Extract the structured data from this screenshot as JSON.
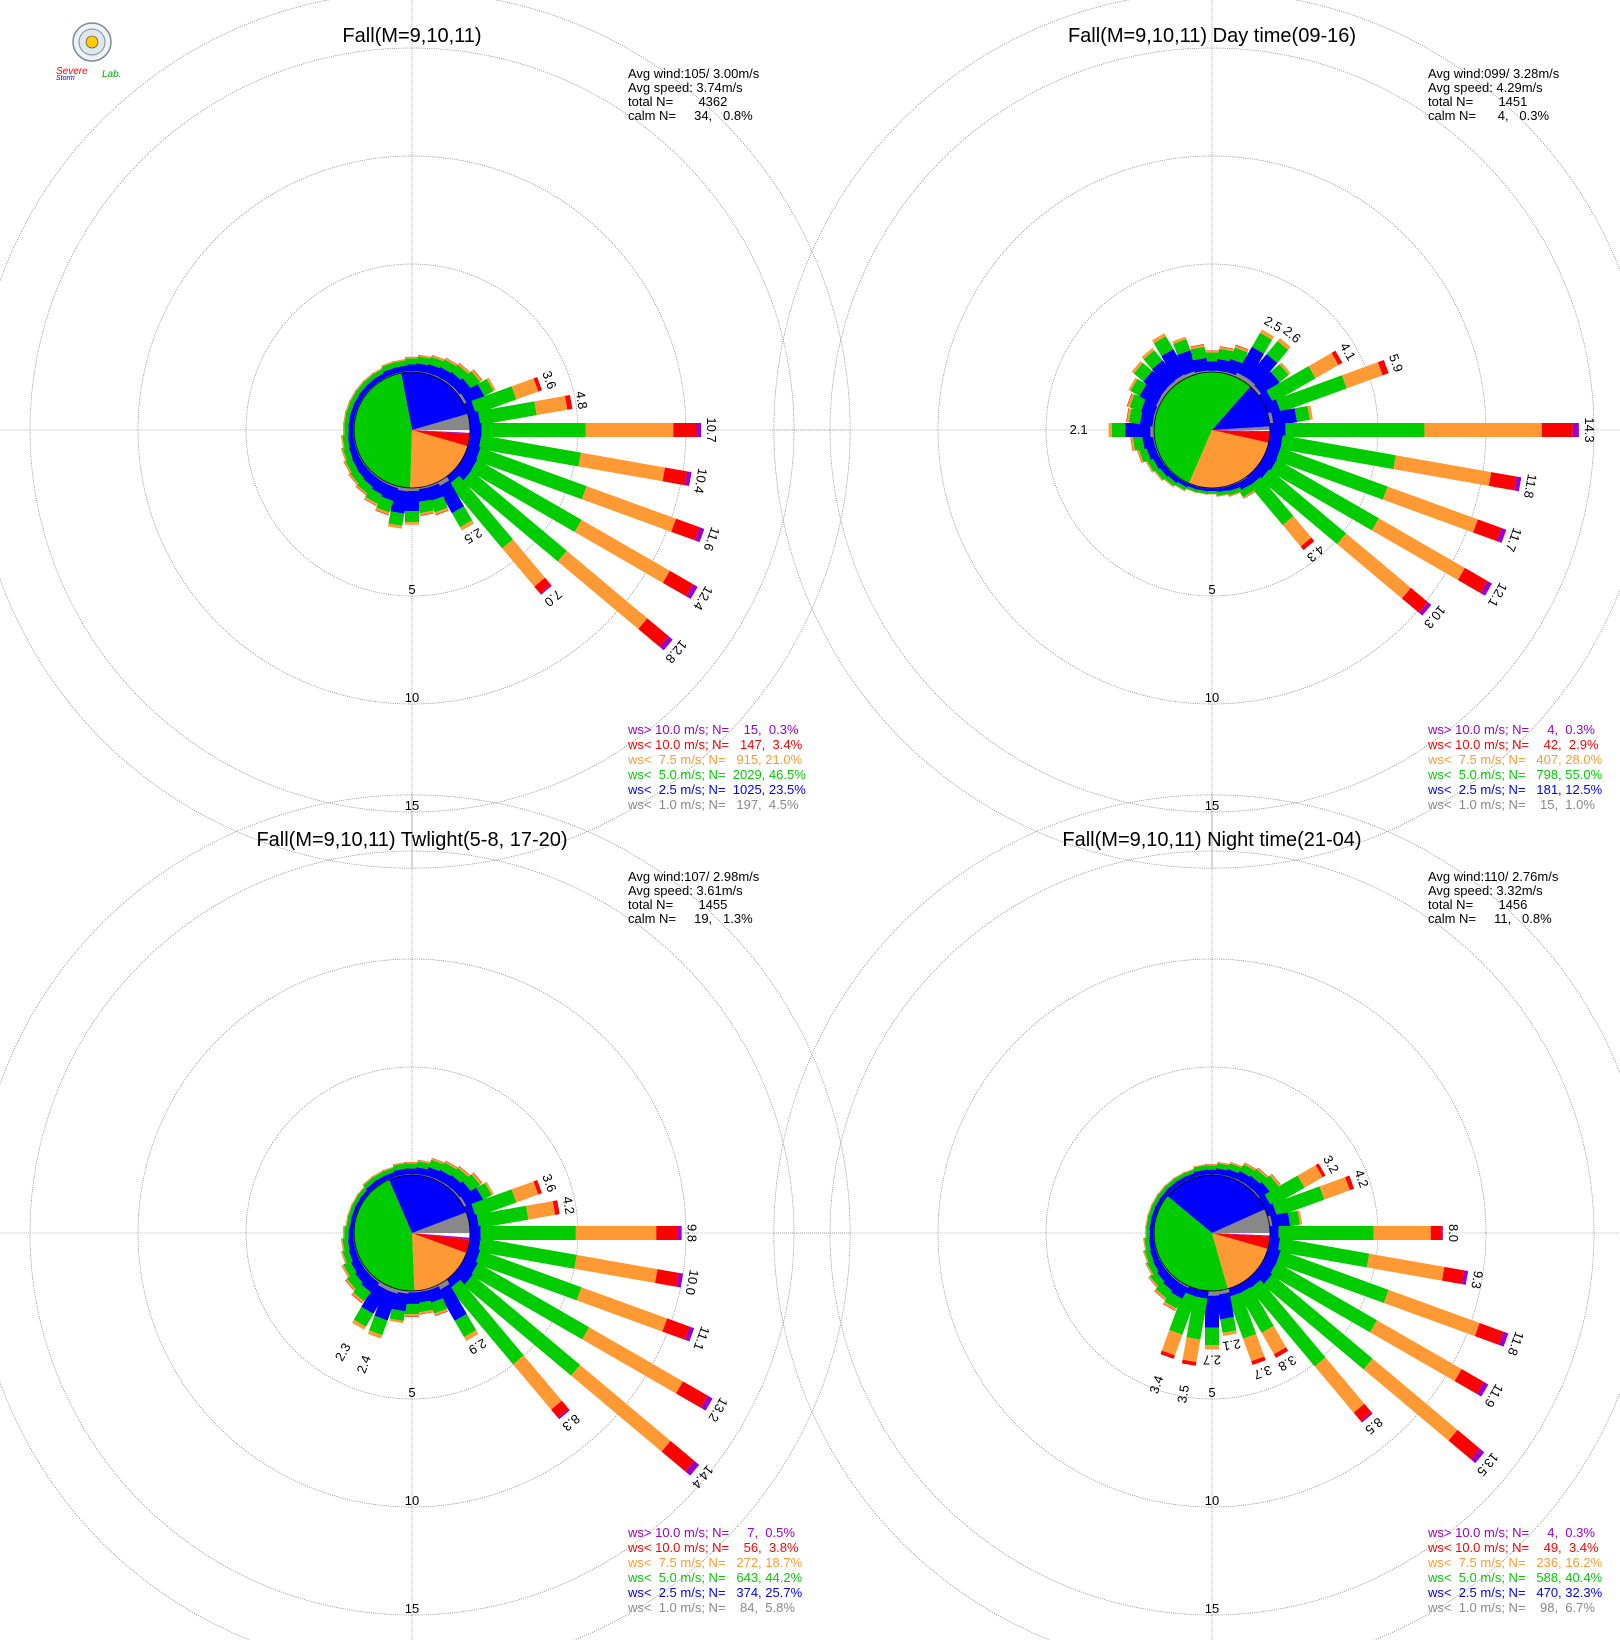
{
  "logo": {
    "text_severe": "Severe",
    "text_storm": "Storm",
    "text_lab": "Lab.",
    "icon": "lab-seal-icon"
  },
  "colors": {
    "gt10": "#9900cc",
    "lt10": "#ff0000",
    "lt75": "#ff9933",
    "lt50": "#00cc00",
    "lt25": "#0000ff",
    "lt10calm": "#888888",
    "grid": "#777777"
  },
  "ring_labels": [
    "5",
    "10",
    "15"
  ],
  "chart_data": [
    {
      "type": "windrose",
      "title": "Fall(M=9,10,11)",
      "stats": [
        "Avg wind:105/ 3.00m/s",
        "Avg speed: 3.74m/s",
        "total N=       4362",
        "calm N=     34,   0.8%"
      ],
      "legend": [
        "ws> 10.0 m/s; N=    15,  0.3%",
        "ws< 10.0 m/s; N=   147,  3.4%",
        "ws<  7.5 m/s; N=   915, 21.0%",
        "ws<  5.0 m/s; N=  2029, 46.5%",
        "ws<  2.5 m/s; N=  1025, 23.5%",
        "ws<  1.0 m/s; N=   197,  4.5%"
      ],
      "pie": [
        0.045,
        0.235,
        0.465,
        0.21,
        0.034,
        0.003
      ],
      "petals": [
        {
          "dir": 0,
          "total": 0.7,
          "label": ""
        },
        {
          "dir": 10,
          "total": 0.8,
          "label": ""
        },
        {
          "dir": 20,
          "total": 0.9,
          "label": ""
        },
        {
          "dir": 30,
          "total": 1.0,
          "label": ""
        },
        {
          "dir": 40,
          "total": 1.1,
          "label": ""
        },
        {
          "dir": 50,
          "total": 1.3,
          "label": ""
        },
        {
          "dir": 60,
          "total": 1.6,
          "label": ""
        },
        {
          "dir": 70,
          "total": 3.6,
          "label": "3.6"
        },
        {
          "dir": 80,
          "total": 4.8,
          "label": "4.8"
        },
        {
          "dir": 90,
          "total": 10.7,
          "label": "10.7"
        },
        {
          "dir": 100,
          "total": 10.4,
          "label": "10.4"
        },
        {
          "dir": 110,
          "total": 11.6,
          "label": "11.6"
        },
        {
          "dir": 120,
          "total": 12.4,
          "label": "12.4"
        },
        {
          "dir": 130,
          "total": 12.8,
          "label": "12.8"
        },
        {
          "dir": 140,
          "total": 7.0,
          "label": "7.0"
        },
        {
          "dir": 150,
          "total": 2.5,
          "label": "2.5"
        },
        {
          "dir": 160,
          "total": 1.4,
          "label": ""
        },
        {
          "dir": 170,
          "total": 1.3,
          "label": ""
        },
        {
          "dir": 180,
          "total": 1.7,
          "label": ""
        },
        {
          "dir": 190,
          "total": 1.9,
          "label": ""
        },
        {
          "dir": 200,
          "total": 1.4,
          "label": ""
        },
        {
          "dir": 210,
          "total": 1.2,
          "label": ""
        },
        {
          "dir": 220,
          "total": 1.0,
          "label": ""
        },
        {
          "dir": 230,
          "total": 0.9,
          "label": ""
        },
        {
          "dir": 240,
          "total": 0.8,
          "label": ""
        },
        {
          "dir": 250,
          "total": 0.7,
          "label": ""
        },
        {
          "dir": 260,
          "total": 0.6,
          "label": ""
        },
        {
          "dir": 270,
          "total": 0.5,
          "label": ""
        },
        {
          "dir": 280,
          "total": 0.5,
          "label": ""
        },
        {
          "dir": 290,
          "total": 0.5,
          "label": ""
        },
        {
          "dir": 300,
          "total": 0.5,
          "label": ""
        },
        {
          "dir": 310,
          "total": 0.5,
          "label": ""
        },
        {
          "dir": 320,
          "total": 0.5,
          "label": ""
        },
        {
          "dir": 330,
          "total": 0.5,
          "label": ""
        },
        {
          "dir": 340,
          "total": 0.6,
          "label": ""
        },
        {
          "dir": 350,
          "total": 0.6,
          "label": ""
        }
      ]
    },
    {
      "type": "windrose",
      "title": "Fall(M=9,10,11) Day time(09-16)",
      "stats": [
        "Avg wind:099/ 3.28m/s",
        "Avg speed: 4.29m/s",
        "total N=       1451",
        "calm N=      4,   0.3%"
      ],
      "legend": [
        "ws> 10.0 m/s; N=     4,  0.3%",
        "ws< 10.0 m/s; N=    42,  2.9%",
        "ws<  7.5 m/s; N=   407, 28.0%",
        "ws<  5.0 m/s; N=   798, 55.0%",
        "ws<  2.5 m/s; N=   181, 12.5%",
        "ws<  1.0 m/s; N=    15,  1.0%"
      ],
      "pie": [
        0.01,
        0.125,
        0.55,
        0.28,
        0.029,
        0.003
      ],
      "petals": [
        {
          "dir": 0,
          "total": 1.0,
          "label": ""
        },
        {
          "dir": 10,
          "total": 1.2,
          "label": ""
        },
        {
          "dir": 20,
          "total": 1.4,
          "label": ""
        },
        {
          "dir": 30,
          "total": 2.5,
          "label": "2.5"
        },
        {
          "dir": 40,
          "total": 2.6,
          "label": "2.6"
        },
        {
          "dir": 50,
          "total": 1.8,
          "label": ""
        },
        {
          "dir": 60,
          "total": 4.1,
          "label": "4.1"
        },
        {
          "dir": 70,
          "total": 5.9,
          "label": "5.9"
        },
        {
          "dir": 80,
          "total": 2.0,
          "label": ""
        },
        {
          "dir": 90,
          "total": 14.3,
          "label": "14.3"
        },
        {
          "dir": 100,
          "total": 11.8,
          "label": "11.8"
        },
        {
          "dir": 110,
          "total": 11.7,
          "label": "11.7"
        },
        {
          "dir": 120,
          "total": 12.1,
          "label": "12.1"
        },
        {
          "dir": 130,
          "total": 10.3,
          "label": "10.3"
        },
        {
          "dir": 140,
          "total": 4.3,
          "label": "4.3"
        },
        {
          "dir": 150,
          "total": 0.8,
          "label": ""
        },
        {
          "dir": 160,
          "total": 0.5,
          "label": ""
        },
        {
          "dir": 170,
          "total": 0.4,
          "label": ""
        },
        {
          "dir": 180,
          "total": 0.3,
          "label": ""
        },
        {
          "dir": 190,
          "total": 0.3,
          "label": ""
        },
        {
          "dir": 200,
          "total": 0.3,
          "label": ""
        },
        {
          "dir": 210,
          "total": 0.4,
          "label": ""
        },
        {
          "dir": 220,
          "total": 0.5,
          "label": ""
        },
        {
          "dir": 230,
          "total": 0.6,
          "label": ""
        },
        {
          "dir": 240,
          "total": 0.7,
          "label": ""
        },
        {
          "dir": 250,
          "total": 0.9,
          "label": ""
        },
        {
          "dir": 260,
          "total": 1.1,
          "label": ""
        },
        {
          "dir": 270,
          "total": 2.1,
          "label": "2.1"
        },
        {
          "dir": 280,
          "total": 1.3,
          "label": ""
        },
        {
          "dir": 290,
          "total": 1.4,
          "label": ""
        },
        {
          "dir": 300,
          "total": 1.6,
          "label": ""
        },
        {
          "dir": 310,
          "total": 1.9,
          "label": ""
        },
        {
          "dir": 320,
          "total": 2.0,
          "label": ""
        },
        {
          "dir": 330,
          "total": 2.3,
          "label": ""
        },
        {
          "dir": 340,
          "total": 1.8,
          "label": ""
        },
        {
          "dir": 350,
          "total": 1.3,
          "label": ""
        }
      ]
    },
    {
      "type": "windrose",
      "title": "Fall(M=9,10,11) Twlight(5-8, 17-20)",
      "stats": [
        "Avg wind:107/ 2.98m/s",
        "Avg speed: 3.61m/s",
        "total N=       1455",
        "calm N=     19,   1.3%"
      ],
      "legend": [
        "ws> 10.0 m/s; N=     7,  0.5%",
        "ws< 10.0 m/s; N=    56,  3.8%",
        "ws<  7.5 m/s; N=   272, 18.7%",
        "ws<  5.0 m/s; N=   643, 44.2%",
        "ws<  2.5 m/s; N=   374, 25.7%",
        "ws<  1.0 m/s; N=    84,  5.8%"
      ],
      "pie": [
        0.058,
        0.257,
        0.442,
        0.187,
        0.038,
        0.005
      ],
      "petals": [
        {
          "dir": 0,
          "total": 0.6,
          "label": ""
        },
        {
          "dir": 10,
          "total": 0.7,
          "label": ""
        },
        {
          "dir": 20,
          "total": 0.9,
          "label": ""
        },
        {
          "dir": 30,
          "total": 1.0,
          "label": ""
        },
        {
          "dir": 40,
          "total": 1.1,
          "label": ""
        },
        {
          "dir": 50,
          "total": 1.3,
          "label": ""
        },
        {
          "dir": 60,
          "total": 1.5,
          "label": ""
        },
        {
          "dir": 70,
          "total": 3.6,
          "label": "3.6"
        },
        {
          "dir": 80,
          "total": 4.2,
          "label": "4.2"
        },
        {
          "dir": 90,
          "total": 9.8,
          "label": "9.8"
        },
        {
          "dir": 100,
          "total": 10.0,
          "label": "10.0"
        },
        {
          "dir": 110,
          "total": 11.1,
          "label": "11.1"
        },
        {
          "dir": 120,
          "total": 13.2,
          "label": "13.2"
        },
        {
          "dir": 130,
          "total": 14.4,
          "label": "14.4"
        },
        {
          "dir": 140,
          "total": 8.3,
          "label": "8.3"
        },
        {
          "dir": 150,
          "total": 2.9,
          "label": "2.9"
        },
        {
          "dir": 160,
          "total": 1.3,
          "label": ""
        },
        {
          "dir": 170,
          "total": 1.1,
          "label": ""
        },
        {
          "dir": 180,
          "total": 1.2,
          "label": ""
        },
        {
          "dir": 190,
          "total": 1.5,
          "label": ""
        },
        {
          "dir": 200,
          "total": 2.4,
          "label": "2.4"
        },
        {
          "dir": 210,
          "total": 2.3,
          "label": "2.3"
        },
        {
          "dir": 220,
          "total": 1.3,
          "label": ""
        },
        {
          "dir": 230,
          "total": 1.1,
          "label": ""
        },
        {
          "dir": 240,
          "total": 0.9,
          "label": ""
        },
        {
          "dir": 250,
          "total": 0.7,
          "label": ""
        },
        {
          "dir": 260,
          "total": 0.6,
          "label": ""
        },
        {
          "dir": 270,
          "total": 0.5,
          "label": ""
        },
        {
          "dir": 280,
          "total": 0.4,
          "label": ""
        },
        {
          "dir": 290,
          "total": 0.4,
          "label": ""
        },
        {
          "dir": 300,
          "total": 0.4,
          "label": ""
        },
        {
          "dir": 310,
          "total": 0.4,
          "label": ""
        },
        {
          "dir": 320,
          "total": 0.5,
          "label": ""
        },
        {
          "dir": 330,
          "total": 0.5,
          "label": ""
        },
        {
          "dir": 340,
          "total": 0.5,
          "label": ""
        },
        {
          "dir": 350,
          "total": 0.6,
          "label": ""
        }
      ]
    },
    {
      "type": "windrose",
      "title": "Fall(M=9,10,11) Night time(21-04)",
      "stats": [
        "Avg wind:110/ 2.76m/s",
        "Avg speed: 3.32m/s",
        "total N=       1456",
        "calm N=     11,   0.8%"
      ],
      "legend": [
        "ws> 10.0 m/s; N=     4,  0.3%",
        "ws< 10.0 m/s; N=    49,  3.4%",
        "ws<  7.5 m/s; N=   236, 16.2%",
        "ws<  5.0 m/s; N=   588, 40.4%",
        "ws<  2.5 m/s; N=   470, 32.3%",
        "ws<  1.0 m/s; N=    98,  6.7%"
      ],
      "pie": [
        0.067,
        0.323,
        0.404,
        0.162,
        0.034,
        0.003
      ],
      "petals": [
        {
          "dir": 0,
          "total": 0.5,
          "label": ""
        },
        {
          "dir": 10,
          "total": 0.6,
          "label": ""
        },
        {
          "dir": 20,
          "total": 0.7,
          "label": ""
        },
        {
          "dir": 30,
          "total": 0.9,
          "label": ""
        },
        {
          "dir": 40,
          "total": 1.0,
          "label": ""
        },
        {
          "dir": 50,
          "total": 1.2,
          "label": ""
        },
        {
          "dir": 60,
          "total": 3.2,
          "label": "3.2"
        },
        {
          "dir": 70,
          "total": 4.2,
          "label": "4.2"
        },
        {
          "dir": 80,
          "total": 1.5,
          "label": ""
        },
        {
          "dir": 90,
          "total": 8.0,
          "label": "8.0"
        },
        {
          "dir": 100,
          "total": 9.3,
          "label": "9.3"
        },
        {
          "dir": 110,
          "total": 11.8,
          "label": "11.8"
        },
        {
          "dir": 120,
          "total": 11.9,
          "label": "11.9"
        },
        {
          "dir": 130,
          "total": 13.5,
          "label": "13.5"
        },
        {
          "dir": 140,
          "total": 8.5,
          "label": "8.5"
        },
        {
          "dir": 150,
          "total": 3.8,
          "label": "3.8"
        },
        {
          "dir": 160,
          "total": 3.7,
          "label": "3.7"
        },
        {
          "dir": 170,
          "total": 2.1,
          "label": "2.1"
        },
        {
          "dir": 180,
          "total": 2.7,
          "label": "2.7"
        },
        {
          "dir": 190,
          "total": 3.5,
          "label": "3.5"
        },
        {
          "dir": 200,
          "total": 3.4,
          "label": "3.4"
        },
        {
          "dir": 210,
          "total": 1.3,
          "label": ""
        },
        {
          "dir": 220,
          "total": 1.1,
          "label": ""
        },
        {
          "dir": 230,
          "total": 0.9,
          "label": ""
        },
        {
          "dir": 240,
          "total": 0.7,
          "label": ""
        },
        {
          "dir": 250,
          "total": 0.6,
          "label": ""
        },
        {
          "dir": 260,
          "total": 0.5,
          "label": ""
        },
        {
          "dir": 270,
          "total": 0.4,
          "label": ""
        },
        {
          "dir": 280,
          "total": 0.4,
          "label": ""
        },
        {
          "dir": 290,
          "total": 0.4,
          "label": ""
        },
        {
          "dir": 300,
          "total": 0.4,
          "label": ""
        },
        {
          "dir": 310,
          "total": 0.4,
          "label": ""
        },
        {
          "dir": 320,
          "total": 0.4,
          "label": ""
        },
        {
          "dir": 330,
          "total": 0.4,
          "label": ""
        },
        {
          "dir": 340,
          "total": 0.4,
          "label": ""
        },
        {
          "dir": 350,
          "total": 0.5,
          "label": ""
        }
      ]
    }
  ]
}
